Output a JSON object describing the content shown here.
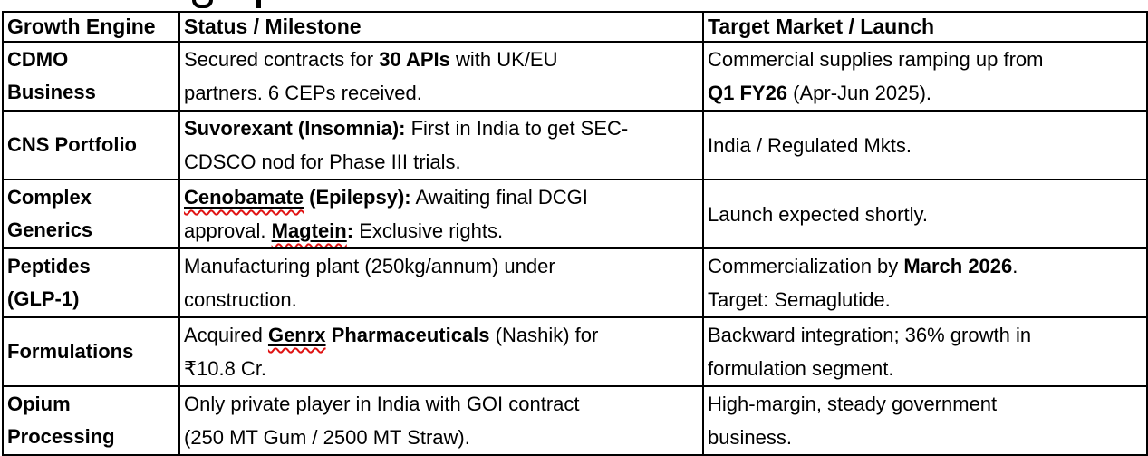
{
  "page": {
    "background": "#ffffff"
  },
  "colors": {
    "text": "#000000",
    "border": "#000000",
    "spellcheck_red": "#e01313"
  },
  "cropped_heading": {
    "fragments": [
      "g-descender",
      "p-descender"
    ]
  },
  "table": {
    "headers": [
      {
        "label": "Growth Engine"
      },
      {
        "label": "Status / Milestone"
      },
      {
        "label": "Target Market / Launch"
      }
    ],
    "rows": [
      {
        "engine_lines": [
          "CDMO",
          "Business"
        ],
        "status_lines": [
          [
            {
              "t": "Secured contracts for "
            },
            {
              "t": "30 APIs",
              "b": true
            },
            {
              "t": " with UK/EU"
            }
          ],
          [
            {
              "t": "partners. 6 CEPs received."
            }
          ]
        ],
        "target_lines": [
          [
            {
              "t": "Commercial supplies ramping up from"
            }
          ],
          [
            {
              "t": "Q1 FY26",
              "b": true
            },
            {
              "t": " (Apr-Jun 2025)."
            }
          ]
        ]
      },
      {
        "engine_lines": [
          "CNS Portfolio"
        ],
        "status_lines": [
          [
            {
              "t": "Suvorexant (Insomnia):",
              "b": true
            },
            {
              "t": " First in India to get SEC-"
            }
          ],
          [
            {
              "t": "CDSCO nod for Phase III trials."
            }
          ]
        ],
        "target_lines": [
          [
            {
              "t": "India / Regulated Mkts."
            }
          ]
        ]
      },
      {
        "engine_lines": [
          "Complex",
          "Generics"
        ],
        "status_lines": [
          [
            {
              "t": "Cenobamate",
              "b": true,
              "u": true,
              "w": true
            },
            {
              "t": " (Epilepsy):",
              "b": true
            },
            {
              "t": " Awaiting final DCGI"
            }
          ],
          [
            {
              "t": "approval. "
            },
            {
              "t": "Magtein",
              "b": true,
              "u": true,
              "w": true
            },
            {
              "t": ":",
              "b": true
            },
            {
              "t": " Exclusive rights."
            }
          ]
        ],
        "target_lines": [
          [
            {
              "t": "Launch expected shortly."
            }
          ]
        ]
      },
      {
        "engine_lines": [
          "Peptides",
          "(GLP-1)"
        ],
        "status_lines": [
          [
            {
              "t": "Manufacturing plant (250kg/annum) under"
            }
          ],
          [
            {
              "t": "construction."
            }
          ]
        ],
        "target_lines": [
          [
            {
              "t": "Commercialization by "
            },
            {
              "t": "March 2026",
              "b": true
            },
            {
              "t": "."
            }
          ],
          [
            {
              "t": "Target: Semaglutide."
            }
          ]
        ]
      },
      {
        "engine_lines": [
          "Formulations"
        ],
        "status_lines": [
          [
            {
              "t": "Acquired "
            },
            {
              "t": "Genrx",
              "b": true,
              "u": true,
              "w": true
            },
            {
              "t": " Pharmaceuticals",
              "b": true
            },
            {
              "t": " (Nashik) for"
            }
          ],
          [
            {
              "t": "₹10.8 Cr."
            }
          ]
        ],
        "target_lines": [
          [
            {
              "t": "Backward integration; 36% growth in"
            }
          ],
          [
            {
              "t": "formulation segment."
            }
          ]
        ]
      },
      {
        "engine_lines": [
          "Opium",
          "Processing"
        ],
        "status_lines": [
          [
            {
              "t": "Only private player in India with GOI contract"
            }
          ],
          [
            {
              "t": "(250 MT Gum / 2500 MT Straw)."
            }
          ]
        ],
        "target_lines": [
          [
            {
              "t": "High-margin, steady government"
            }
          ],
          [
            {
              "t": "business."
            }
          ]
        ]
      }
    ]
  }
}
